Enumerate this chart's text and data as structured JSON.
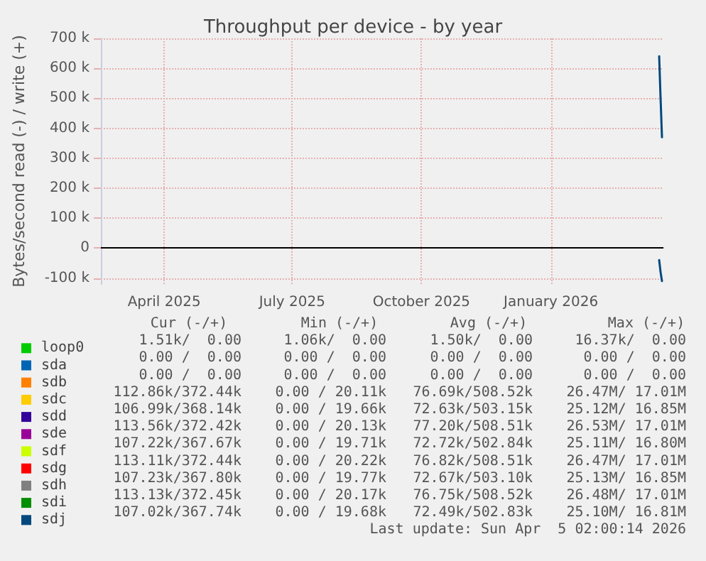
{
  "chart_data": {
    "type": "line",
    "title": "Throughput per device - by year",
    "ylabel": "Bytes/second read (-) / write (+)",
    "x": [
      "2026-04-02",
      "2026-04-03",
      "2026-04-04"
    ],
    "xlim": [
      "2025-03-01",
      "2026-04-05"
    ],
    "xticks": [
      {
        "value": "2025-04-15",
        "label": "April 2025"
      },
      {
        "value": "2025-07-15",
        "label": "July 2025"
      },
      {
        "value": "2025-10-15",
        "label": "October 2025"
      },
      {
        "value": "2026-01-15",
        "label": "January 2026"
      }
    ],
    "ylim": [
      -120000,
      700000
    ],
    "yticks": [
      {
        "value": -100000,
        "label": "-100 k"
      },
      {
        "value": 0,
        "label": "0"
      },
      {
        "value": 100000,
        "label": "100 k"
      },
      {
        "value": 200000,
        "label": "200 k"
      },
      {
        "value": 300000,
        "label": "300 k"
      },
      {
        "value": 400000,
        "label": "400 k"
      },
      {
        "value": 500000,
        "label": "500 k"
      },
      {
        "value": 600000,
        "label": "600 k"
      },
      {
        "value": 700000,
        "label": "700 k"
      }
    ],
    "grid": true,
    "legend": "bottom left",
    "marker": "none",
    "line_style": "solid",
    "ref_lines": [
      {
        "axis": "y",
        "value": 0,
        "color": "#000000"
      }
    ],
    "series": [
      {
        "name": "loop0",
        "color": "#00cc00",
        "values": [
          null,
          null,
          null
        ]
      },
      {
        "name": "sda",
        "color": "#0066b3",
        "values": [
          null,
          null,
          null
        ]
      },
      {
        "name": "sdb",
        "color": "#ff8000",
        "values": [
          null,
          null,
          null
        ]
      },
      {
        "name": "sdc",
        "color": "#ffcc00",
        "values": [
          null,
          null,
          null
        ]
      },
      {
        "name": "sdd",
        "color": "#330099",
        "values": [
          null,
          null,
          null
        ]
      },
      {
        "name": "sde",
        "color": "#990099",
        "values": [
          null,
          null,
          null
        ]
      },
      {
        "name": "sdf",
        "color": "#ccff00",
        "values": [
          null,
          null,
          null
        ]
      },
      {
        "name": "sdg",
        "color": "#ff0000",
        "values": [
          null,
          null,
          null
        ]
      },
      {
        "name": "sdh",
        "color": "#808080",
        "values": [
          null,
          null,
          null
        ]
      },
      {
        "name": "sdi",
        "color": "#008f00",
        "values": [
          null,
          null,
          null
        ]
      },
      {
        "name": "sdj",
        "color": "#00487d",
        "values": [
          640000,
          500000,
          370000
        ]
      },
      {
        "color": "#00487d",
        "values": [
          -40000,
          -80000,
          -110000
        ]
      }
    ],
    "annotations": [
      "Cur (-/+)",
      "Min (-/+)",
      "Avg (-/+)",
      "Max (-/+)",
      "1.51k/  0.00",
      "1.06k/  0.00",
      "1.50k/  0.00",
      "16.37k/  0.00",
      "0.00 /  0.00",
      "0.00 /  0.00",
      "0.00 /  0.00",
      "0.00 /  0.00",
      "0.00 /  0.00",
      "0.00 /  0.00",
      "0.00 /  0.00",
      "0.00 /  0.00",
      "112.86k/372.44k",
      "0.00 / 20.11k",
      "76.69k/508.52k",
      "26.47M/ 17.01M",
      "106.99k/368.14k",
      "0.00 / 19.66k",
      "72.63k/503.15k",
      "25.12M/ 16.85M",
      "113.56k/372.42k",
      "0.00 / 20.13k",
      "77.20k/508.51k",
      "26.53M/ 17.01M",
      "107.22k/367.67k",
      "0.00 / 19.71k",
      "72.72k/502.84k",
      "25.11M/ 16.80M",
      "113.11k/372.44k",
      "0.00 / 20.22k",
      "76.82k/508.51k",
      "26.47M/ 17.01M",
      "107.23k/367.80k",
      "0.00 / 19.77k",
      "72.67k/503.10k",
      "25.13M/ 16.85M",
      "113.13k/372.45k",
      "0.00 / 20.17k",
      "76.75k/508.52k",
      "26.48M/ 17.01M",
      "107.02k/367.74k",
      "0.00 / 19.68k",
      "72.49k/502.83k",
      "25.10M/ 16.81M",
      "Last update: Sun Apr  5 02:00:14 2026"
    ]
  }
}
